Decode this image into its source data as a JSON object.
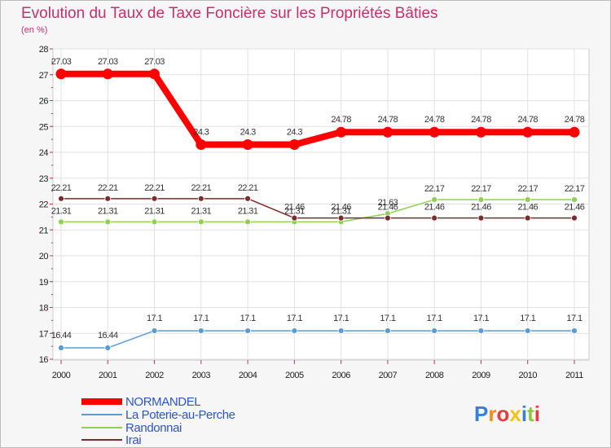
{
  "chart_data": {
    "type": "line",
    "title": "Evolution du Taux de Taxe Foncière sur les Propriétés Bâties",
    "subtitle": "(en %)",
    "xlabel": "",
    "ylabel": "",
    "ylim": [
      16,
      28
    ],
    "yticks": [
      "16",
      "17",
      "18",
      "19",
      "20",
      "21",
      "22",
      "23",
      "24",
      "25",
      "26",
      "27",
      "28"
    ],
    "categories": [
      "2000",
      "2001",
      "2002",
      "2003",
      "2004",
      "2005",
      "2006",
      "2007",
      "2008",
      "2009",
      "2010",
      "2011"
    ],
    "grid": true,
    "legend_position": "bottom-left",
    "series": [
      {
        "name": "NORMANDEL",
        "color": "#ff0000",
        "values": [
          27.03,
          27.03,
          27.03,
          24.3,
          24.3,
          24.3,
          24.78,
          24.78,
          24.78,
          24.78,
          24.78,
          24.78
        ],
        "labels": [
          "27.03",
          "27.03",
          "27.03",
          "24.3",
          "24.3",
          "24.3",
          "24.78",
          "24.78",
          "24.78",
          "24.78",
          "24.78",
          "24.78"
        ]
      },
      {
        "name": "La Poterie-au-Perche",
        "color": "#5b9bd5",
        "values": [
          16.44,
          16.44,
          17.1,
          17.1,
          17.1,
          17.1,
          17.1,
          17.1,
          17.1,
          17.1,
          17.1,
          17.1
        ],
        "labels": [
          "16.44",
          "16.44",
          "17.1",
          "17.1",
          "17.1",
          "17.1",
          "17.1",
          "17.1",
          "17.1",
          "17.1",
          "17.1",
          "17.1"
        ]
      },
      {
        "name": "Randonnai",
        "color": "#8fd14f",
        "values": [
          21.31,
          21.31,
          21.31,
          21.31,
          21.31,
          21.31,
          21.31,
          21.63,
          22.17,
          22.17,
          22.17,
          22.17
        ],
        "labels": [
          "21.31",
          "21.31",
          "21.31",
          "21.31",
          "21.31",
          "21.31",
          "21.31",
          "21.63",
          "22.17",
          "22.17",
          "22.17",
          "22.17"
        ]
      },
      {
        "name": "Irai",
        "color": "#7b2b2b",
        "values": [
          22.21,
          22.21,
          22.21,
          22.21,
          22.21,
          21.46,
          21.46,
          21.46,
          21.46,
          21.46,
          21.46,
          21.46
        ],
        "labels": [
          "22.21",
          "22.21",
          "22.21",
          "22.21",
          "22.21",
          "21.46",
          "21.46",
          "21.46",
          "21.46",
          "21.46",
          "21.46",
          "21.46"
        ]
      }
    ]
  },
  "logo": {
    "text": "Proxiti",
    "colors": [
      "#3a7fd6",
      "#f28c1a",
      "#e83b3b",
      "#f2c21a",
      "#3a7fd6",
      "#8fc63f",
      "#e83b3b"
    ]
  }
}
